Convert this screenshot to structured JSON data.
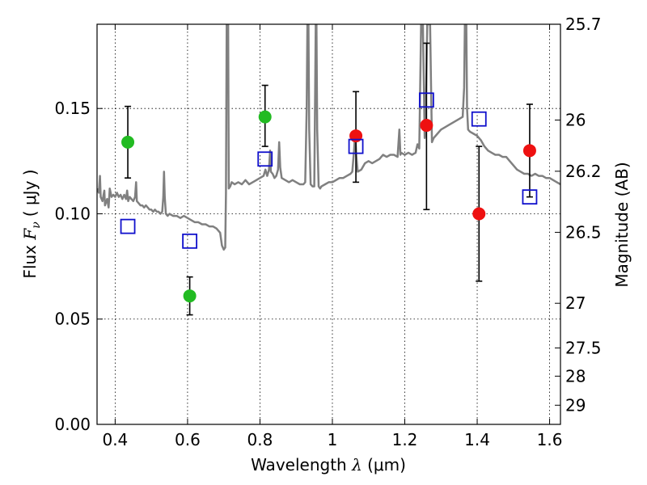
{
  "chart_data": {
    "type": "scatter",
    "xlabel_text": "Wavelength",
    "xlabel_symbol": "λ",
    "xlabel_unit": "(μm)",
    "ylabel_text": "Flux",
    "ylabel_symbol": "F",
    "ylabel_subscript": "ν",
    "ylabel_unit": "( μJy )",
    "y2label": "Magnitude (AB)",
    "xlim": [
      0.35,
      1.63
    ],
    "ylim": [
      0.0,
      0.19
    ],
    "x_ticks": [
      0.4,
      0.6,
      0.8,
      1.0,
      1.2,
      1.4,
      1.6
    ],
    "x_tick_labels": [
      "0.4",
      "0.6",
      "0.8",
      "1",
      "1.2",
      "1.4",
      "1.6"
    ],
    "y_ticks": [
      0.0,
      0.05,
      0.1,
      0.15
    ],
    "y_tick_labels": [
      "0.00",
      "0.05",
      "0.10",
      "0.15"
    ],
    "y2_ticks": [
      {
        "label": "25.7",
        "flux": 0.19
      },
      {
        "label": "26",
        "flux": 0.1445
      },
      {
        "label": "26.2",
        "flux": 0.1202
      },
      {
        "label": "26.5",
        "flux": 0.0912
      },
      {
        "label": "27",
        "flux": 0.0575
      },
      {
        "label": "27.5",
        "flux": 0.0363
      },
      {
        "label": "28",
        "flux": 0.0229
      },
      {
        "label": "29",
        "flux": 0.0091
      }
    ],
    "grid": true,
    "colors": {
      "green": "#22bb22",
      "red": "#ee1111",
      "blue": "#1010cc",
      "model": "#808080"
    },
    "series": [
      {
        "marker": "circle",
        "color": "green",
        "points": [
          {
            "x": 0.435,
            "y": 0.134,
            "yerr_lo": 0.117,
            "yerr_hi": 0.151
          },
          {
            "x": 0.606,
            "y": 0.061,
            "yerr_lo": 0.052,
            "yerr_hi": 0.07
          },
          {
            "x": 0.814,
            "y": 0.146,
            "yerr_lo": 0.132,
            "yerr_hi": 0.161
          }
        ]
      },
      {
        "marker": "circle",
        "color": "red",
        "points": [
          {
            "x": 1.065,
            "y": 0.137,
            "yerr_lo": 0.115,
            "yerr_hi": 0.158
          },
          {
            "x": 1.26,
            "y": 0.142,
            "yerr_lo": 0.102,
            "yerr_hi": 0.181
          },
          {
            "x": 1.405,
            "y": 0.1,
            "yerr_lo": 0.068,
            "yerr_hi": 0.132
          },
          {
            "x": 1.545,
            "y": 0.13,
            "yerr_lo": 0.108,
            "yerr_hi": 0.152
          }
        ]
      },
      {
        "marker": "open-square",
        "color": "blue",
        "points": [
          {
            "x": 0.435,
            "y": 0.094
          },
          {
            "x": 0.606,
            "y": 0.087
          },
          {
            "x": 0.814,
            "y": 0.126
          },
          {
            "x": 1.065,
            "y": 0.132
          },
          {
            "x": 1.26,
            "y": 0.154
          },
          {
            "x": 1.405,
            "y": 0.145
          },
          {
            "x": 1.545,
            "y": 0.108
          }
        ]
      }
    ],
    "model_spectrum": [
      [
        0.35,
        0.112
      ],
      [
        0.355,
        0.11
      ],
      [
        0.358,
        0.118
      ],
      [
        0.36,
        0.108
      ],
      [
        0.365,
        0.106
      ],
      [
        0.37,
        0.111
      ],
      [
        0.372,
        0.104
      ],
      [
        0.378,
        0.107
      ],
      [
        0.382,
        0.103
      ],
      [
        0.385,
        0.112
      ],
      [
        0.39,
        0.108
      ],
      [
        0.395,
        0.109
      ],
      [
        0.4,
        0.108
      ],
      [
        0.405,
        0.11
      ],
      [
        0.41,
        0.108
      ],
      [
        0.415,
        0.109
      ],
      [
        0.42,
        0.107
      ],
      [
        0.425,
        0.109
      ],
      [
        0.43,
        0.107
      ],
      [
        0.433,
        0.111
      ],
      [
        0.436,
        0.106
      ],
      [
        0.44,
        0.108
      ],
      [
        0.445,
        0.107
      ],
      [
        0.45,
        0.106
      ],
      [
        0.455,
        0.108
      ],
      [
        0.458,
        0.115
      ],
      [
        0.46,
        0.106
      ],
      [
        0.465,
        0.105
      ],
      [
        0.47,
        0.104
      ],
      [
        0.475,
        0.104
      ],
      [
        0.48,
        0.103
      ],
      [
        0.485,
        0.104
      ],
      [
        0.49,
        0.103
      ],
      [
        0.495,
        0.102
      ],
      [
        0.5,
        0.102
      ],
      [
        0.505,
        0.101
      ],
      [
        0.51,
        0.102
      ],
      [
        0.515,
        0.101
      ],
      [
        0.52,
        0.101
      ],
      [
        0.525,
        0.1
      ],
      [
        0.53,
        0.101
      ],
      [
        0.533,
        0.108
      ],
      [
        0.535,
        0.12
      ],
      [
        0.537,
        0.108
      ],
      [
        0.54,
        0.1
      ],
      [
        0.545,
        0.099
      ],
      [
        0.55,
        0.1
      ],
      [
        0.56,
        0.099
      ],
      [
        0.57,
        0.099
      ],
      [
        0.58,
        0.098
      ],
      [
        0.59,
        0.099
      ],
      [
        0.6,
        0.098
      ],
      [
        0.61,
        0.097
      ],
      [
        0.62,
        0.096
      ],
      [
        0.63,
        0.096
      ],
      [
        0.64,
        0.095
      ],
      [
        0.65,
        0.095
      ],
      [
        0.66,
        0.094
      ],
      [
        0.67,
        0.094
      ],
      [
        0.68,
        0.093
      ],
      [
        0.69,
        0.091
      ],
      [
        0.695,
        0.085
      ],
      [
        0.7,
        0.083
      ],
      [
        0.704,
        0.084
      ],
      [
        0.706,
        0.11
      ],
      [
        0.708,
        0.19
      ],
      [
        0.712,
        0.19
      ],
      [
        0.714,
        0.112
      ],
      [
        0.718,
        0.113
      ],
      [
        0.722,
        0.115
      ],
      [
        0.73,
        0.114
      ],
      [
        0.74,
        0.115
      ],
      [
        0.75,
        0.114
      ],
      [
        0.76,
        0.116
      ],
      [
        0.77,
        0.114
      ],
      [
        0.78,
        0.115
      ],
      [
        0.79,
        0.116
      ],
      [
        0.8,
        0.117
      ],
      [
        0.81,
        0.118
      ],
      [
        0.815,
        0.121
      ],
      [
        0.82,
        0.118
      ],
      [
        0.825,
        0.121
      ],
      [
        0.828,
        0.13
      ],
      [
        0.83,
        0.12
      ],
      [
        0.835,
        0.119
      ],
      [
        0.84,
        0.117
      ],
      [
        0.845,
        0.118
      ],
      [
        0.85,
        0.121
      ],
      [
        0.853,
        0.134
      ],
      [
        0.856,
        0.122
      ],
      [
        0.86,
        0.117
      ],
      [
        0.87,
        0.116
      ],
      [
        0.88,
        0.115
      ],
      [
        0.89,
        0.116
      ],
      [
        0.9,
        0.115
      ],
      [
        0.91,
        0.114
      ],
      [
        0.92,
        0.114
      ],
      [
        0.925,
        0.115
      ],
      [
        0.929,
        0.15
      ],
      [
        0.931,
        0.19
      ],
      [
        0.934,
        0.19
      ],
      [
        0.936,
        0.14
      ],
      [
        0.94,
        0.114
      ],
      [
        0.945,
        0.113
      ],
      [
        0.95,
        0.113
      ],
      [
        0.952,
        0.15
      ],
      [
        0.954,
        0.19
      ],
      [
        0.956,
        0.19
      ],
      [
        0.958,
        0.14
      ],
      [
        0.962,
        0.113
      ],
      [
        0.966,
        0.112
      ],
      [
        0.97,
        0.113
      ],
      [
        0.98,
        0.114
      ],
      [
        0.99,
        0.115
      ],
      [
        1.0,
        0.115
      ],
      [
        1.01,
        0.116
      ],
      [
        1.02,
        0.117
      ],
      [
        1.03,
        0.117
      ],
      [
        1.04,
        0.118
      ],
      [
        1.05,
        0.119
      ],
      [
        1.055,
        0.12
      ],
      [
        1.06,
        0.13
      ],
      [
        1.063,
        0.139
      ],
      [
        1.066,
        0.128
      ],
      [
        1.07,
        0.12
      ],
      [
        1.08,
        0.121
      ],
      [
        1.09,
        0.124
      ],
      [
        1.1,
        0.125
      ],
      [
        1.11,
        0.124
      ],
      [
        1.12,
        0.125
      ],
      [
        1.13,
        0.126
      ],
      [
        1.14,
        0.128
      ],
      [
        1.15,
        0.127
      ],
      [
        1.16,
        0.128
      ],
      [
        1.17,
        0.128
      ],
      [
        1.18,
        0.127
      ],
      [
        1.185,
        0.14
      ],
      [
        1.188,
        0.128
      ],
      [
        1.19,
        0.129
      ],
      [
        1.2,
        0.128
      ],
      [
        1.21,
        0.129
      ],
      [
        1.22,
        0.128
      ],
      [
        1.23,
        0.129
      ],
      [
        1.235,
        0.133
      ],
      [
        1.24,
        0.131
      ],
      [
        1.245,
        0.19
      ],
      [
        1.25,
        0.19
      ],
      [
        1.255,
        0.136
      ],
      [
        1.258,
        0.15
      ],
      [
        1.262,
        0.19
      ],
      [
        1.27,
        0.19
      ],
      [
        1.275,
        0.134
      ],
      [
        1.28,
        0.136
      ],
      [
        1.29,
        0.138
      ],
      [
        1.3,
        0.14
      ],
      [
        1.31,
        0.141
      ],
      [
        1.32,
        0.142
      ],
      [
        1.33,
        0.143
      ],
      [
        1.34,
        0.144
      ],
      [
        1.35,
        0.145
      ],
      [
        1.36,
        0.146
      ],
      [
        1.364,
        0.16
      ],
      [
        1.366,
        0.19
      ],
      [
        1.37,
        0.19
      ],
      [
        1.372,
        0.15
      ],
      [
        1.375,
        0.14
      ],
      [
        1.38,
        0.139
      ],
      [
        1.39,
        0.138
      ],
      [
        1.4,
        0.137
      ],
      [
        1.41,
        0.135
      ],
      [
        1.42,
        0.132
      ],
      [
        1.43,
        0.13
      ],
      [
        1.44,
        0.129
      ],
      [
        1.45,
        0.128
      ],
      [
        1.46,
        0.128
      ],
      [
        1.47,
        0.127
      ],
      [
        1.48,
        0.127
      ],
      [
        1.49,
        0.125
      ],
      [
        1.5,
        0.123
      ],
      [
        1.51,
        0.121
      ],
      [
        1.52,
        0.12
      ],
      [
        1.53,
        0.119
      ],
      [
        1.54,
        0.119
      ],
      [
        1.55,
        0.118
      ],
      [
        1.56,
        0.119
      ],
      [
        1.57,
        0.118
      ],
      [
        1.58,
        0.118
      ],
      [
        1.59,
        0.117
      ],
      [
        1.6,
        0.117
      ],
      [
        1.61,
        0.116
      ],
      [
        1.62,
        0.115
      ],
      [
        1.63,
        0.114
      ]
    ]
  }
}
